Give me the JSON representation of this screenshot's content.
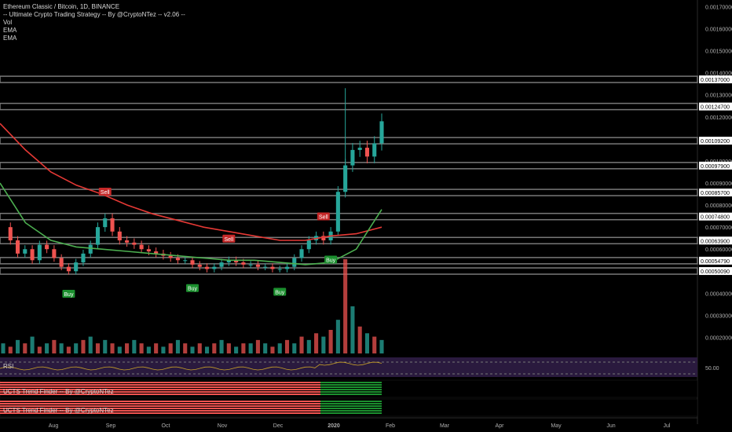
{
  "legend": {
    "title": "Ethereum Classic / Bitcoin, 1D, BINANCE",
    "strategy": "-- Ultimate Crypto Trading Strategy -- By @CryptoNTez -- v2.06 --",
    "vol": "Vol",
    "ema1": "EMA",
    "ema2": "EMA"
  },
  "panels": {
    "rsi_label": "RSI",
    "rsi_value": "50.00",
    "trend1_label": "UCTS Trend Finder -- By @CryptoNTez",
    "trend2_label": "UCTS Trend Finder -- By @CryptoNTez"
  },
  "colors": {
    "background": "#000000",
    "up": "#26a69a",
    "down": "#ef5350",
    "ema_fast": "#4caf50",
    "ema_slow": "#e53935",
    "level_band": "#787878",
    "rsi_bg": "#2a1a3e",
    "rsi_line": "#c9a227",
    "buy": "#1b8f2e",
    "sell": "#c62828"
  },
  "chart_data": {
    "type": "candlestick",
    "symbol": "Ethereum Classic / Bitcoin",
    "interval": "1D",
    "exchange": "BINANCE",
    "x_labels": [
      "Aug",
      "Sep",
      "Oct",
      "Nov",
      "Dec",
      "2020",
      "Feb",
      "Mar",
      "Apr",
      "May",
      "Jun",
      "Jul"
    ],
    "y_ticks": [
      "0.00170000",
      "0.00160000",
      "0.00150000",
      "0.00140000",
      "0.00130000",
      "0.00120000",
      "0.00110000",
      "0.00100000",
      "0.00090000",
      "0.00080000",
      "0.00070000",
      "0.00060000",
      "0.00050000",
      "0.00040000",
      "0.00030000",
      "0.00020000"
    ],
    "level_labels": [
      "0.00137000",
      "0.00124700",
      "0.00109200",
      "0.00097900",
      "0.00085700",
      "0.00074800",
      "0.00063900",
      "0.00054790",
      "0.00050090"
    ],
    "levels": [
      0.00137,
      0.001247,
      0.001092,
      0.000979,
      0.000857,
      0.000748,
      0.000639,
      0.0005479,
      0.0005009
    ],
    "price_path": [
      0.0007,
      0.00064,
      0.00058,
      0.0006,
      0.00055,
      0.00062,
      0.0006,
      0.00056,
      0.00052,
      0.0005,
      0.00054,
      0.00058,
      0.00062,
      0.0007,
      0.00074,
      0.00068,
      0.00064,
      0.00063,
      0.00062,
      0.0006,
      0.00059,
      0.00058,
      0.00057,
      0.00056,
      0.00055,
      0.00055,
      0.00053,
      0.00052,
      0.00051,
      0.00052,
      0.00054,
      0.00055,
      0.00054,
      0.00053,
      0.00053,
      0.00052,
      0.00052,
      0.00051,
      0.00051,
      0.00052,
      0.00056,
      0.0006,
      0.00064,
      0.00066,
      0.00064,
      0.00068,
      0.00086,
      0.00098,
      0.00105,
      0.00106,
      0.00102,
      0.00108,
      0.00118
    ],
    "ema_fast": [
      0.0009,
      0.00072,
      0.00064,
      0.00061,
      0.0006,
      0.00059,
      0.00058,
      0.00057,
      0.00056,
      0.00055,
      0.00055,
      0.00054,
      0.00053,
      0.00054,
      0.0006,
      0.00078
    ],
    "ema_slow": [
      0.00117,
      0.00105,
      0.00095,
      0.00089,
      0.00085,
      0.0008,
      0.00076,
      0.00073,
      0.0007,
      0.00068,
      0.00066,
      0.00064,
      0.00064,
      0.00066,
      0.00067,
      0.0007
    ],
    "signals": [
      {
        "label": "Buy",
        "type": "buy",
        "index": 9
      },
      {
        "label": "Sell",
        "type": "sell",
        "index": 14
      },
      {
        "label": "Buy",
        "type": "buy",
        "index": 26
      },
      {
        "label": "Sell",
        "type": "sell",
        "index": 31
      },
      {
        "label": "Buy",
        "type": "buy",
        "index": 38
      },
      {
        "label": "Sell",
        "type": "sell",
        "index": 44
      },
      {
        "label": "Buy",
        "type": "buy",
        "index": 45
      }
    ],
    "volume": [
      3,
      2,
      4,
      3,
      5,
      2,
      3,
      4,
      3,
      2,
      3,
      4,
      5,
      3,
      4,
      3,
      2,
      3,
      4,
      3,
      2,
      3,
      2,
      3,
      4,
      3,
      2,
      3,
      2,
      3,
      4,
      3,
      2,
      3,
      3,
      4,
      3,
      2,
      3,
      4,
      3,
      5,
      4,
      6,
      5,
      7,
      10,
      28,
      14,
      8,
      6,
      5,
      4
    ]
  }
}
